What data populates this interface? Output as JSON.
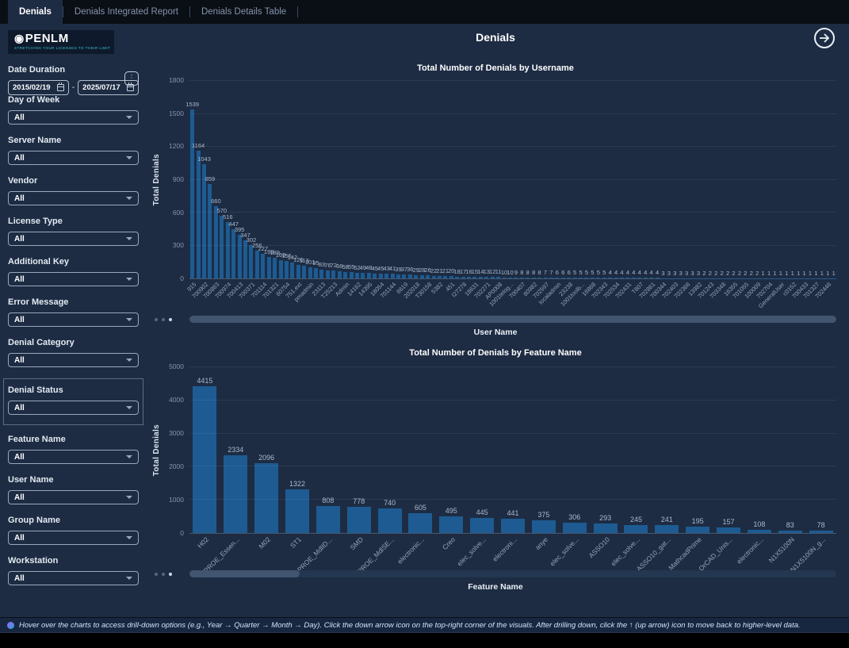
{
  "tabs": [
    {
      "label": "Denials",
      "active": true
    },
    {
      "label": "Denials Integrated Report",
      "active": false
    },
    {
      "label": "Denials Details Table",
      "active": false
    }
  ],
  "header": {
    "title": "Denials"
  },
  "icons": {
    "more_options": "⋮",
    "forward_arrow": "→",
    "logo_mark": "◉"
  },
  "colors": {
    "bar": "#1d5b92",
    "background": "#1d2c43",
    "tab_bar": "#0a0e15",
    "accent_teal": "#38c3d6"
  },
  "sidebar": {
    "logo": {
      "wordmark": "PENLM",
      "tagline": "STRETCHING YOUR LICENSES TO THEIR LIMIT"
    },
    "date_duration": {
      "label": "Date Duration",
      "start": "2015/02/19",
      "end": "2025/07/17",
      "separator": "-"
    },
    "filters": [
      {
        "label": "Day of Week",
        "value": "All"
      },
      {
        "label": "Server Name",
        "value": "All"
      },
      {
        "label": "Vendor",
        "value": "All"
      },
      {
        "label": "License Type",
        "value": "All"
      },
      {
        "label": "Additional Key",
        "value": "All"
      },
      {
        "label": "Error Message",
        "value": "All"
      },
      {
        "label": "Denial Category",
        "value": "All"
      },
      {
        "label": "Denial Status",
        "value": "All",
        "boxed": true
      },
      {
        "label": "Feature Name",
        "value": "All"
      },
      {
        "label": "User Name",
        "value": "All"
      },
      {
        "label": "Group Name",
        "value": "All"
      },
      {
        "label": "Workstation",
        "value": "All"
      }
    ]
  },
  "chart_data": [
    {
      "type": "bar",
      "title": "Total Number of Denials by Username",
      "xlabel": "User Name",
      "ylabel": "Total Denials",
      "ylim": [
        0,
        1800
      ],
      "yticks": [
        0,
        300,
        600,
        900,
        1200,
        1500,
        1800
      ],
      "grid": true,
      "values": [
        1539,
        1164,
        1043,
        859,
        660,
        570,
        516,
        447,
        395,
        347,
        302,
        256,
        227,
        193,
        189,
        169,
        156,
        142,
        126,
        113,
        101,
        95,
        83,
        76,
        72,
        66,
        58,
        55,
        52,
        49,
        48,
        45,
        45,
        43,
        41,
        39,
        37,
        36,
        29,
        28,
        26,
        22,
        21,
        21,
        20,
        18,
        17,
        16,
        15,
        14,
        13,
        12,
        11,
        10,
        10,
        9,
        8,
        8,
        8,
        8,
        7,
        7,
        6,
        6,
        6,
        5,
        5,
        5,
        5,
        5,
        5,
        4,
        4,
        4,
        4,
        4,
        4,
        4,
        4,
        4,
        3,
        3,
        3,
        3,
        3,
        3,
        3,
        2,
        2,
        2,
        2,
        2,
        2,
        2,
        2,
        2,
        2,
        1,
        1,
        1,
        1,
        1,
        1,
        1,
        1,
        1,
        1,
        1,
        1,
        1
      ],
      "x_tick_every": 2,
      "x_tick_labels": [
        "915",
        "700902",
        "700863",
        "700974",
        "700413",
        "700371",
        "701114",
        "701321",
        "60754",
        "751.ext",
        "pmadmin",
        "23113",
        "T25213",
        "Admin",
        "14162",
        "14395",
        "18054",
        "701144",
        "6619",
        "202018",
        "T30158",
        "5382",
        "451",
        "I27278",
        "18631",
        "702271",
        "AP0008",
        "1001telog...",
        "700407",
        "60982",
        "702597",
        "localadmin",
        "23238",
        "1001toolb...",
        "16868",
        "702343",
        "702534",
        "702431",
        "T607",
        "702861",
        "700344",
        "702403",
        "702366",
        "13982",
        "701243",
        "703348",
        "16355",
        "701055",
        "100009",
        "702704",
        "GeneralUser",
        "c0152",
        "700433",
        "701327",
        "702446"
      ],
      "h_scroll_thumb": "100%"
    },
    {
      "type": "bar",
      "title": "Total Number of Denials by Feature Name",
      "xlabel": "Feature Name",
      "ylabel": "Total Denials",
      "ylim": [
        0,
        5000
      ],
      "yticks": [
        0,
        1000,
        2000,
        3000,
        4000,
        5000
      ],
      "grid": true,
      "categories": [
        "H02",
        "PROE_Essen...",
        "M02",
        "ST1",
        "PROE_MdlID...",
        "SMD",
        "PROE_MdlSE...",
        "electronic...",
        "Creo",
        "elec_solve...",
        "electroni...",
        "anye",
        "elec_solve...",
        "ASSO10",
        "elec_solve...",
        "ASSO10_gat...",
        "MathcadPrime",
        "OrCAD_Unis...",
        "electronic...",
        "N1X5100N",
        "N1X5100N_g..."
      ],
      "values": [
        4415,
        2334,
        2096,
        1322,
        808,
        778,
        740,
        605,
        495,
        445,
        441,
        375,
        306,
        293,
        245,
        241,
        195,
        157,
        108,
        83,
        78
      ],
      "x_tick_every": 1,
      "h_scroll_thumb": "17%"
    }
  ],
  "footer": {
    "note": "Hover over the charts to access drill-down options (e.g., Year → Quarter → Month → Day). Click the down arrow icon on the top-right corner of the visuals. After drilling down, click the ↑ (up arrow) icon to move back to higher-level data."
  }
}
